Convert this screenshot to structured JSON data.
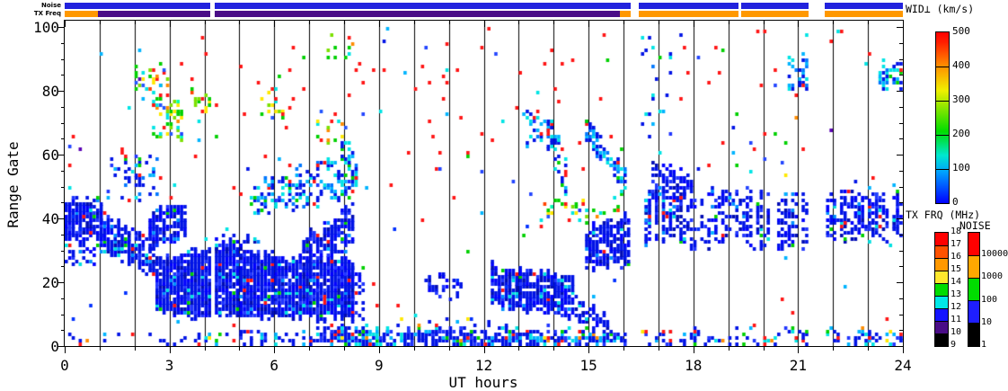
{
  "top_bars": {
    "noise": {
      "label": "Noise",
      "color": "#2222dd",
      "segments": [
        [
          0,
          4.17
        ],
        [
          4.29,
          16.2
        ],
        [
          16.45,
          19.3
        ],
        [
          19.38,
          21.3
        ],
        [
          21.75,
          24
        ]
      ]
    },
    "tx_freq": {
      "label": "TX Freq",
      "segments": [
        {
          "t": [
            0,
            0.95
          ],
          "mhz": 15,
          "color": "#ff9800"
        },
        {
          "t": [
            0.95,
            4.17
          ],
          "mhz": 10,
          "color": "#4a0d87"
        },
        {
          "t": [
            4.29,
            15.9
          ],
          "mhz": 10,
          "color": "#4a0d87"
        },
        {
          "t": [
            15.9,
            16.2
          ],
          "mhz": 15,
          "color": "#ff9800"
        },
        {
          "t": [
            16.45,
            19.3
          ],
          "mhz": 15,
          "color": "#ff9800"
        },
        {
          "t": [
            19.38,
            21.3
          ],
          "mhz": 15,
          "color": "#ff9800"
        },
        {
          "t": [
            21.75,
            24
          ],
          "mhz": 15,
          "color": "#ff9800"
        }
      ]
    }
  },
  "axes": {
    "xlabel": "UT hours",
    "ylabel": "Range Gate",
    "x_ticks": [
      "0",
      "3",
      "6",
      "9",
      "12",
      "15",
      "18",
      "21",
      "24"
    ],
    "y_ticks": [
      "0",
      "20",
      "40",
      "60",
      "80",
      "100"
    ],
    "x_minor_step_hours": 1,
    "y_minor_step_gates": 5
  },
  "colorbars": {
    "wid": {
      "title": "WID⊥ (km/s)",
      "min": 0,
      "max": 500,
      "ticks": [
        "500",
        "400",
        "300",
        "200",
        "100",
        "0"
      ],
      "gradient": [
        "#0000ff 0%",
        "#00a0ff 18%",
        "#00e8d0 28%",
        "#00dc00 42%",
        "#a0e800 58%",
        "#f0f000 66%",
        "#ff9100 80%",
        "#ff2000 94%",
        "#ff0000 100%"
      ]
    },
    "tx_frq": {
      "title": "TX FRQ (MHz)",
      "ticks": [
        "18",
        "17",
        "16",
        "15",
        "14",
        "13",
        "12",
        "11",
        "10",
        "9"
      ],
      "colors": [
        "#ff0000",
        "#ff5200",
        "#ff9800",
        "#ffe82d",
        "#00dc00",
        "#00e8e8",
        "#1414ff",
        "#4a0d87",
        "#000000"
      ]
    },
    "noise": {
      "title": "NOISE",
      "ticks": [
        "10000",
        "1000",
        "100",
        "10",
        "1"
      ],
      "colors": [
        "#ff0000",
        "#ffa800",
        "#00dc00",
        "#1e1eff",
        "#000000"
      ]
    }
  },
  "chart_data": {
    "type": "heatmap",
    "title": "",
    "xlabel": "UT hours",
    "ylabel": "Range Gate",
    "xlim": [
      0,
      24
    ],
    "ylim": [
      0,
      100
    ],
    "value_label": "WID⊥ (km/s)",
    "value_range": [
      0,
      500
    ],
    "bin_hours": 0.1,
    "seed": 1337,
    "gaps": [
      [
        4.17,
        4.29
      ],
      [
        16.2,
        16.45
      ],
      [
        21.3,
        21.75
      ]
    ],
    "palettes": {
      "dense": [
        [
          "#0013e6",
          55
        ],
        [
          "#0000ff",
          18
        ],
        [
          "#2136ff",
          8
        ],
        [
          "#000cb4",
          9
        ],
        [
          "#0090ff",
          4
        ],
        [
          "#00e0e0",
          3
        ],
        [
          "#00d000",
          1.5
        ],
        [
          "#ff1515",
          1.5
        ]
      ],
      "bluecyan": [
        [
          "#0013e6",
          38
        ],
        [
          "#0077ff",
          14
        ],
        [
          "#00b4ff",
          16
        ],
        [
          "#00e4e4",
          16
        ],
        [
          "#00d000",
          6
        ],
        [
          "#2136ff",
          6
        ],
        [
          "#ff1515",
          4
        ]
      ],
      "multi": [
        [
          "#00d000",
          28
        ],
        [
          "#7ce000",
          12
        ],
        [
          "#ffe800",
          10
        ],
        [
          "#00e4e4",
          13
        ],
        [
          "#ff1515",
          13
        ],
        [
          "#ff8c00",
          8
        ],
        [
          "#2255ff",
          10
        ],
        [
          "#00ffb0",
          3
        ],
        [
          "#ff4400",
          3
        ]
      ],
      "bottom": [
        [
          "#0013e6",
          58
        ],
        [
          "#2136ff",
          10
        ],
        [
          "#00b4ff",
          11
        ],
        [
          "#00e4e4",
          9
        ],
        [
          "#ff1515",
          5
        ],
        [
          "#00d000",
          4
        ],
        [
          "#ffe800",
          1
        ],
        [
          "#ff8c00",
          2
        ]
      ],
      "spk_hi": [
        [
          "#ff1515",
          45
        ],
        [
          "#2244ff",
          17
        ],
        [
          "#00b4ff",
          12
        ],
        [
          "#00e4e4",
          9
        ],
        [
          "#00d000",
          9
        ],
        [
          "#0013e6",
          4
        ],
        [
          "#5a00b4",
          2
        ],
        [
          "#ffe800",
          1
        ],
        [
          "#ff8c00",
          1
        ]
      ],
      "spk_lo": [
        [
          "#ff1515",
          28
        ],
        [
          "#0030ff",
          28
        ],
        [
          "#00b4ff",
          16
        ],
        [
          "#00e4e4",
          12
        ],
        [
          "#00d000",
          8
        ],
        [
          "#2136ff",
          8
        ]
      ]
    },
    "regions": [
      {
        "t": [
          0,
          1.15
        ],
        "gb": [
          34,
          34
        ],
        "gt": [
          45,
          45
        ],
        "d": 0.8,
        "p": "dense"
      },
      {
        "t": [
          0,
          1.1
        ],
        "gb": [
          25,
          25
        ],
        "gt": [
          34,
          34
        ],
        "d": 0.28,
        "p": "dense"
      },
      {
        "t": [
          1.0,
          2.6
        ],
        "gb": [
          30,
          21
        ],
        "gt": [
          41,
          32
        ],
        "d": 0.75,
        "p": "dense"
      },
      {
        "t": [
          1.2,
          2.7
        ],
        "gb": [
          46,
          46
        ],
        "gt": [
          61,
          57
        ],
        "d": 0.2,
        "p": "bluecyan"
      },
      {
        "t": [
          2.35,
          3.45
        ],
        "gb": [
          31,
          33
        ],
        "gt": [
          42,
          43
        ],
        "d": 0.72,
        "p": "dense"
      },
      {
        "t": [
          2.6,
          4.17
        ],
        "gb": [
          10,
          9
        ],
        "gt": [
          26,
          30
        ],
        "d": 0.88,
        "p": "dense"
      },
      {
        "t": [
          4.29,
          8.35
        ],
        "gb": [
          9,
          9
        ],
        "gt": [
          29,
          26
        ],
        "d": 0.9,
        "p": "dense"
      },
      {
        "t": [
          4.29,
          5.6
        ],
        "gb": [
          29,
          27
        ],
        "gt": [
          34,
          32
        ],
        "d": 0.5,
        "p": "dense"
      },
      {
        "t": [
          6.8,
          8.35
        ],
        "gb": [
          26,
          30
        ],
        "gt": [
          33,
          45
        ],
        "d": 0.65,
        "p": "dense"
      },
      {
        "t": [
          5.3,
          8.35
        ],
        "gb": [
          40,
          47
        ],
        "gt": [
          49,
          61
        ],
        "d": 0.3,
        "p": "bluecyan"
      },
      {
        "t": [
          7.95,
          8.55
        ],
        "gb": [
          5,
          8
        ],
        "gt": [
          28,
          20
        ],
        "d": 0.45,
        "p": "dense"
      },
      {
        "t": [
          7.9,
          8.45
        ],
        "gb": [
          46,
          50
        ],
        "gt": [
          67,
          55
        ],
        "d": 0.38,
        "p": "bluecyan"
      },
      {
        "t": [
          10.3,
          11.5
        ],
        "gb": [
          16,
          15
        ],
        "gt": [
          22,
          20
        ],
        "d": 0.42,
        "p": "dense"
      },
      {
        "t": [
          12.2,
          14.6
        ],
        "gb": [
          13,
          9
        ],
        "gt": [
          25,
          20
        ],
        "d": 0.85,
        "p": "dense"
      },
      {
        "t": [
          14.6,
          15.6
        ],
        "gb": [
          8,
          5
        ],
        "gt": [
          14,
          9
        ],
        "d": 0.5,
        "p": "dense"
      },
      {
        "t": [
          13.8,
          14.4
        ],
        "gb": [
          62,
          46
        ],
        "gt": [
          72,
          60
        ],
        "d": 0.45,
        "p": "bluecyan"
      },
      {
        "t": [
          14.9,
          16.15
        ],
        "gb": [
          65,
          45
        ],
        "gt": [
          73,
          52
        ],
        "d": 0.45,
        "p": "bluecyan"
      },
      {
        "t": [
          13.6,
          15.9
        ],
        "gb": [
          37,
          41
        ],
        "gt": [
          45,
          45
        ],
        "d": 0.15,
        "p": "multi"
      },
      {
        "t": [
          14.9,
          16.2
        ],
        "gb": [
          23,
          26
        ],
        "gt": [
          36,
          40
        ],
        "d": 0.75,
        "p": "dense"
      },
      {
        "t": [
          16.5,
          21.3
        ],
        "gb": [
          31,
          31
        ],
        "gt": [
          47,
          47
        ],
        "d": 0.6,
        "p": "dense",
        "s": 1
      },
      {
        "t": [
          21.75,
          24
        ],
        "gb": [
          32,
          33
        ],
        "gt": [
          47,
          47
        ],
        "d": 0.6,
        "p": "dense",
        "s": 1
      },
      {
        "t": [
          16.85,
          18.0
        ],
        "gb": [
          46,
          47
        ],
        "gt": [
          56,
          53
        ],
        "d": 0.45,
        "p": "dense"
      },
      {
        "t": [
          16.5,
          17.4
        ],
        "gb": [
          57,
          57
        ],
        "gt": [
          100,
          95
        ],
        "d": 0.06,
        "p": "bluecyan"
      },
      {
        "t": [
          20.75,
          21.28
        ],
        "gb": [
          80,
          81
        ],
        "gt": [
          89,
          88
        ],
        "d": 0.45,
        "p": "bluecyan"
      },
      {
        "t": [
          23.35,
          23.95
        ],
        "gb": [
          80,
          80
        ],
        "gt": [
          89,
          88
        ],
        "d": 0.45,
        "p": "bluecyan"
      },
      {
        "t": [
          2.05,
          3.0
        ],
        "gb": [
          79,
          79
        ],
        "gt": [
          88,
          87
        ],
        "d": 0.28,
        "p": "multi"
      },
      {
        "t": [
          2.55,
          3.5
        ],
        "gb": [
          65,
          64
        ],
        "gt": [
          78,
          76
        ],
        "d": 0.35,
        "p": "multi"
      },
      {
        "t": [
          3.6,
          4.15
        ],
        "gb": [
          72,
          72
        ],
        "gt": [
          79,
          79
        ],
        "d": 0.28,
        "p": "multi"
      },
      {
        "t": [
          5.6,
          6.45
        ],
        "gb": [
          70,
          71
        ],
        "gt": [
          80,
          79
        ],
        "d": 0.25,
        "p": "multi"
      },
      {
        "t": [
          7.2,
          8.1
        ],
        "gb": [
          62,
          64
        ],
        "gt": [
          72,
          72
        ],
        "d": 0.25,
        "p": "multi"
      },
      {
        "t": [
          7.4,
          8.35
        ],
        "gb": [
          89,
          89
        ],
        "gt": [
          96,
          95
        ],
        "d": 0.2,
        "p": "multi"
      },
      {
        "t": [
          13.1,
          14.0
        ],
        "gb": [
          63,
          63
        ],
        "gt": [
          73,
          72
        ],
        "d": 0.25,
        "p": "bluecyan"
      },
      {
        "t": [
          0,
          2.5
        ],
        "gb": [
          0,
          0
        ],
        "gt": [
          3,
          3
        ],
        "d": 0.12,
        "p": "bottom"
      },
      {
        "t": [
          2.5,
          4.17
        ],
        "gb": [
          0,
          0
        ],
        "gt": [
          3,
          3
        ],
        "d": 0.2,
        "p": "bottom"
      },
      {
        "t": [
          4.29,
          7.2
        ],
        "gb": [
          0,
          0
        ],
        "gt": [
          3,
          3
        ],
        "d": 0.42,
        "p": "bottom"
      },
      {
        "t": [
          7.2,
          16.1
        ],
        "gb": [
          0,
          0
        ],
        "gt": [
          4,
          3
        ],
        "d": 0.78,
        "p": "bottom"
      },
      {
        "t": [
          7.2,
          16.1
        ],
        "gb": [
          4,
          4
        ],
        "gt": [
          7,
          6
        ],
        "d": 0.15,
        "p": "bottom"
      },
      {
        "t": [
          16.5,
          21.3
        ],
        "gb": [
          0,
          0
        ],
        "gt": [
          4,
          4
        ],
        "d": 0.28,
        "p": "bottom"
      },
      {
        "t": [
          21.75,
          24
        ],
        "gb": [
          0,
          0
        ],
        "gt": [
          4,
          4
        ],
        "d": 0.3,
        "p": "bottom"
      }
    ],
    "speckle": [
      {
        "g": [
          45,
          100
        ],
        "density": 0.013,
        "p": "spk_hi"
      },
      {
        "g": [
          4,
          44
        ],
        "density": 0.008,
        "p": "spk_lo"
      }
    ]
  }
}
